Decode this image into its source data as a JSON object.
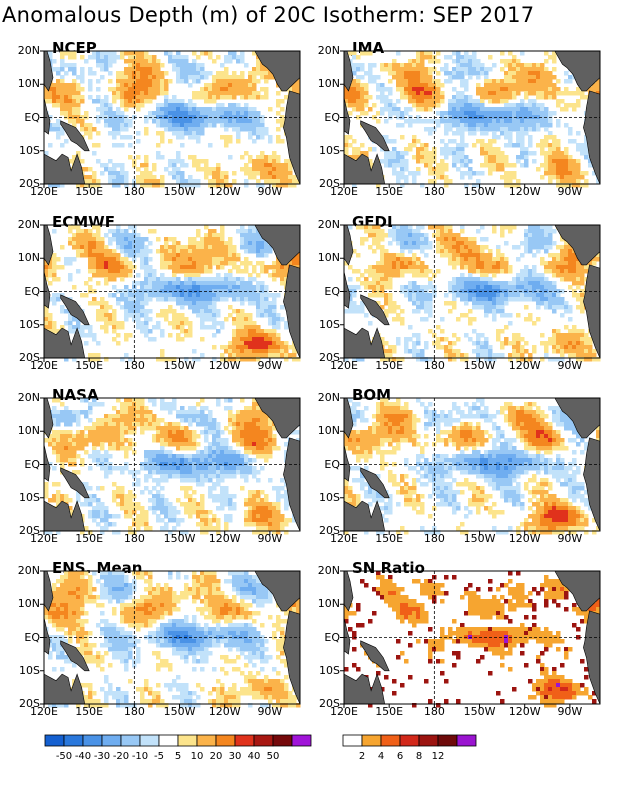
{
  "title": "Anomalous Depth (m) of 20C Isotherm: SEP 2017",
  "axes": {
    "y_ticks": [
      "20N",
      "10N",
      "EQ",
      "10S",
      "20S"
    ],
    "x_ticks": [
      "120E",
      "150E",
      "180",
      "150W",
      "120W",
      "90W"
    ]
  },
  "panels": [
    {
      "name": "NCEP"
    },
    {
      "name": "JMA"
    },
    {
      "name": "ECMWF"
    },
    {
      "name": "GFDL"
    },
    {
      "name": "NASA"
    },
    {
      "name": "BOM"
    },
    {
      "name": "ENS. Mean"
    },
    {
      "name": "SN Ratio"
    }
  ],
  "colorbar_anomaly": {
    "labels": [
      "-50",
      "-40",
      "-30",
      "-20",
      "-10",
      "-5",
      "5",
      "10",
      "20",
      "30",
      "40",
      "50"
    ],
    "colors": [
      "#1560d0",
      "#2a78dc",
      "#4a92e6",
      "#6fadf0",
      "#98c8f5",
      "#c2e2fa",
      "#ffffff",
      "#fce48c",
      "#fbb34a",
      "#f4861f",
      "#e0321c",
      "#a81712",
      "#75090b",
      "#a014d8"
    ]
  },
  "colorbar_sn": {
    "labels": [
      "2",
      "4",
      "6",
      "8",
      "12"
    ],
    "colors": [
      "#ffffff",
      "#f6a530",
      "#f06018",
      "#d2281a",
      "#9c1410",
      "#6e0a0a",
      "#9a14d0"
    ]
  },
  "chart_data": {
    "type": "heatmap",
    "title": "Anomalous Depth (m) of 20C Isotherm: SEP 2017",
    "x_ticks": [
      "120E",
      "150E",
      "180",
      "150W",
      "120W",
      "90W"
    ],
    "y_ticks": [
      "20N",
      "10N",
      "EQ",
      "10S",
      "20S"
    ],
    "xlim": [
      "120E",
      "70W"
    ],
    "ylim": [
      "20S",
      "20N"
    ],
    "panels": [
      "NCEP",
      "JMA",
      "ECMWF",
      "GFDL",
      "NASA",
      "BOM",
      "ENS. Mean",
      "SN Ratio"
    ],
    "anomaly_levels": [
      -50,
      -40,
      -30,
      -20,
      -10,
      -5,
      5,
      10,
      20,
      30,
      40,
      50
    ],
    "sn_levels": [
      2,
      4,
      6,
      8,
      12
    ]
  }
}
